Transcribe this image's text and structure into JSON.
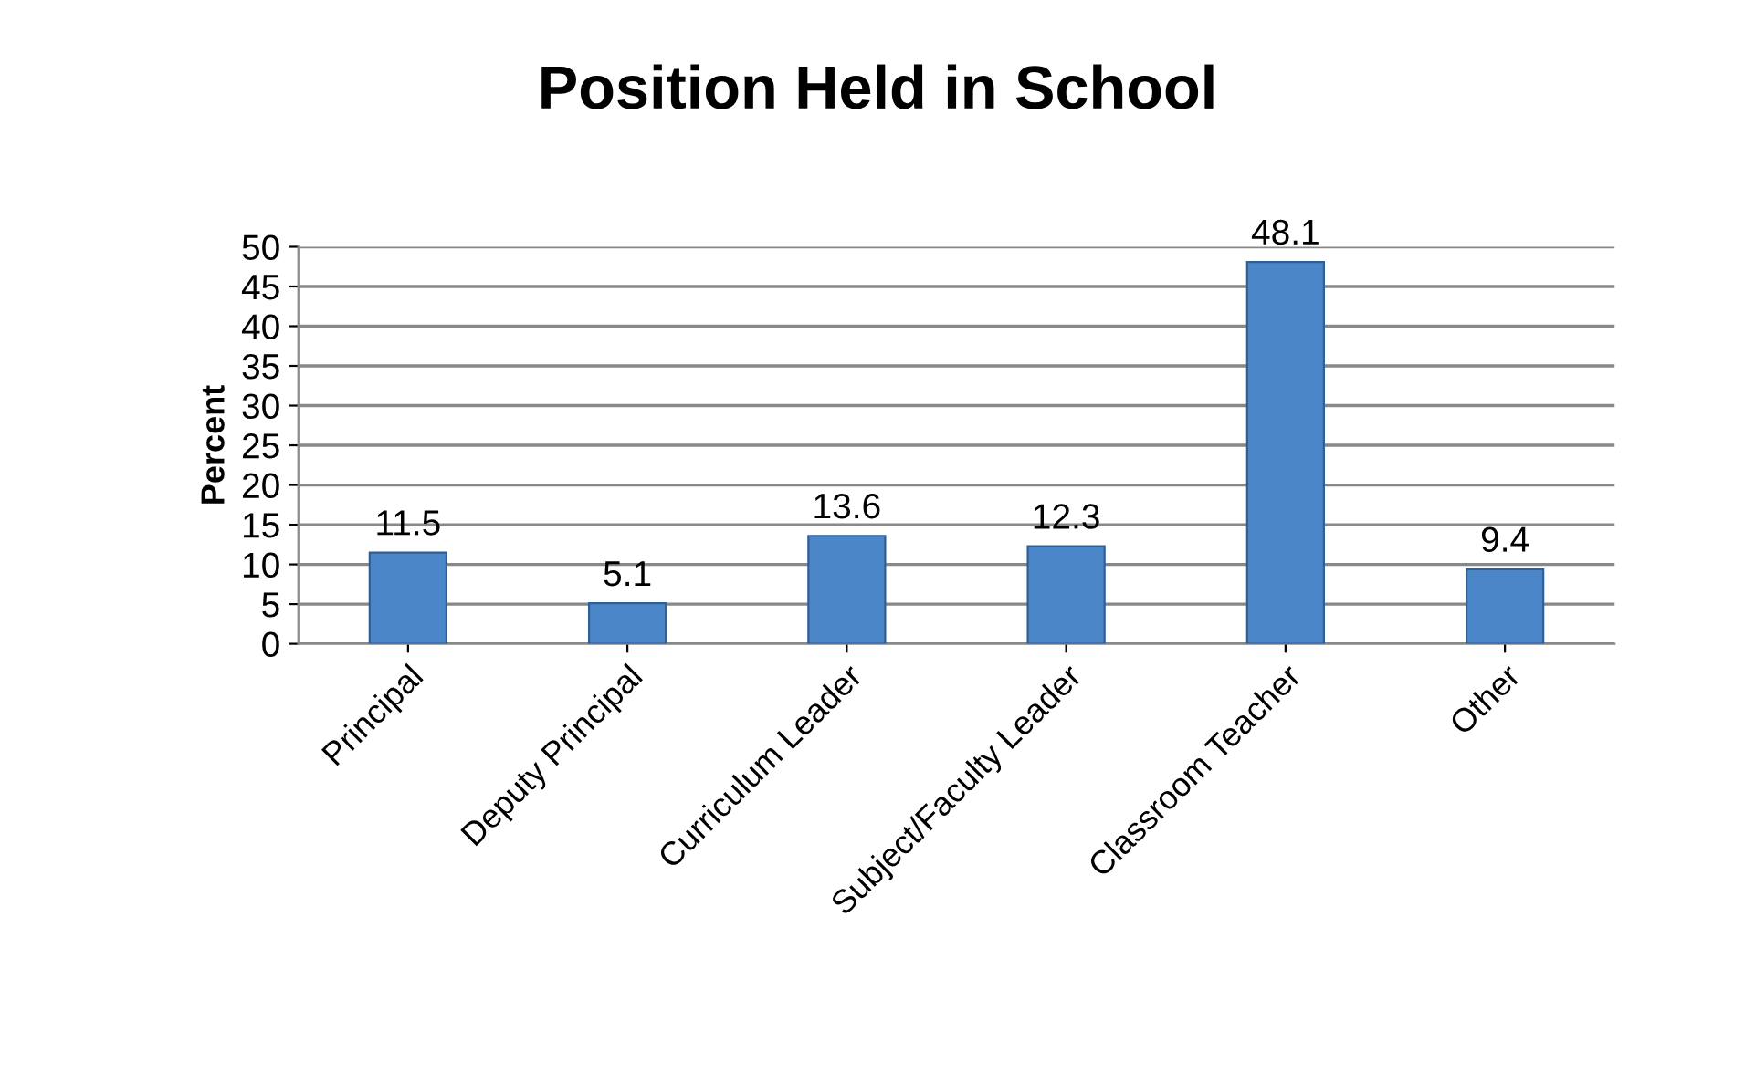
{
  "chart_data": {
    "type": "bar",
    "title": "Position Held in School",
    "ylabel": "Percent",
    "categories": [
      "Principal",
      "Deputy Principal",
      "Curriculum Leader",
      "Subject/Faculty Leader",
      "Classroom Teacher",
      "Other"
    ],
    "values": [
      11.5,
      5.1,
      13.6,
      12.3,
      48.1,
      9.4
    ],
    "color": "#4a86c8",
    "ylim": [
      0,
      50
    ],
    "yticks": [
      0,
      5,
      10,
      15,
      20,
      25,
      30,
      35,
      40,
      45,
      50
    ],
    "grid": "y",
    "data_labels": true,
    "legend": false
  }
}
